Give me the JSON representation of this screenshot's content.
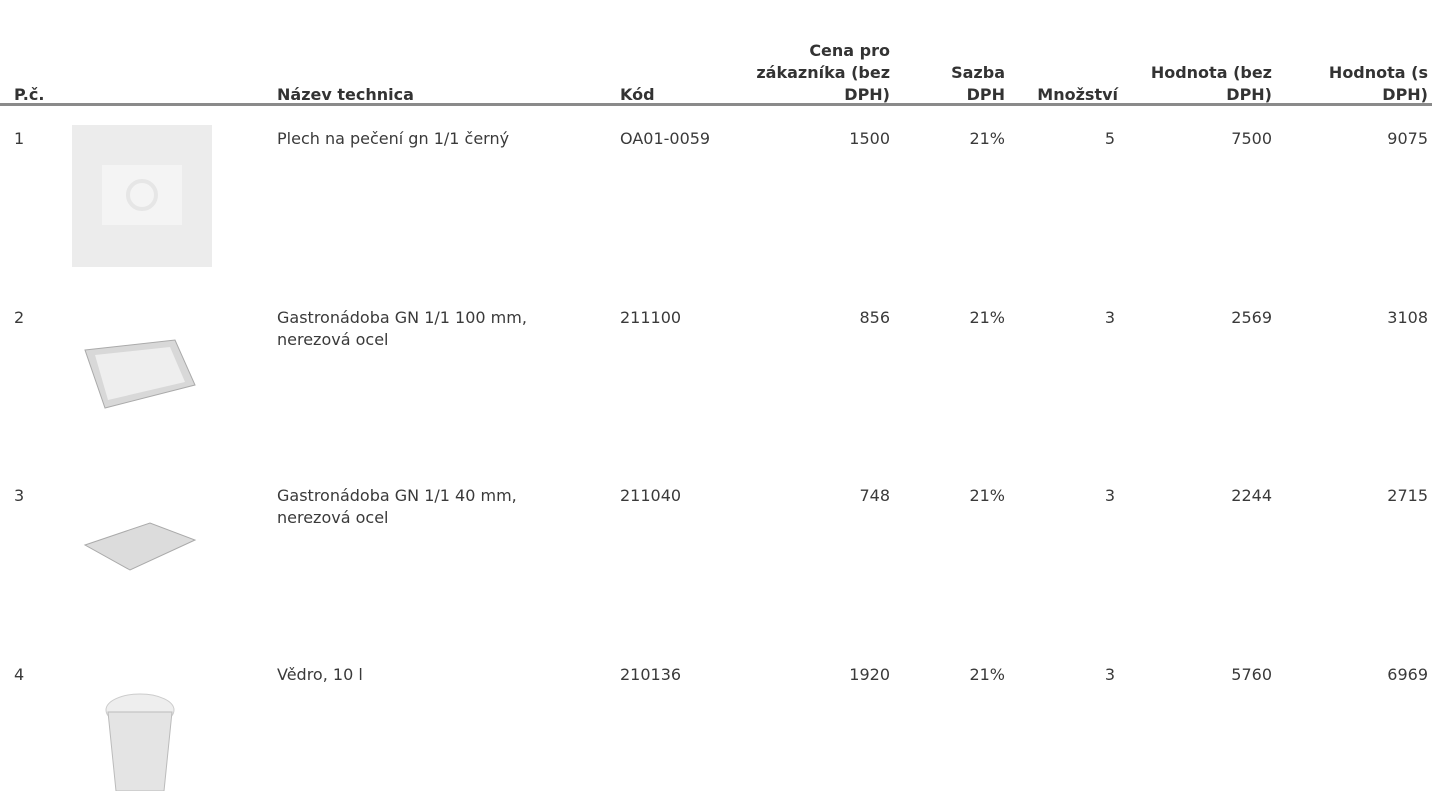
{
  "table": {
    "header": [
      "P.č.",
      "Název technica",
      "Kód",
      "Cena pro zákazníka (bez DPH)",
      "Sazba DPH",
      "Množství",
      "Hodnota (bez DPH)",
      "Hodnota (s DPH)"
    ],
    "rows": [
      [
        "1",
        "Plech na pečení gn 1/1 černý",
        "OA01-0059",
        "1500",
        "21%",
        "5",
        "7500",
        "9075"
      ],
      [
        "2",
        "Gastronádoba GN 1/1 100 mm, nerezová ocel",
        "211100",
        "856",
        "21%",
        "3",
        "2569",
        "3108"
      ],
      [
        "3",
        "Gastronádoba GN 1/1 40 mm, nerezová ocel",
        "211040",
        "748",
        "21%",
        "3",
        "2244",
        "2715"
      ],
      [
        "4",
        "Vědro, 10 l",
        "210136",
        "1920",
        "21%",
        "3",
        "5760",
        "6969"
      ]
    ]
  }
}
